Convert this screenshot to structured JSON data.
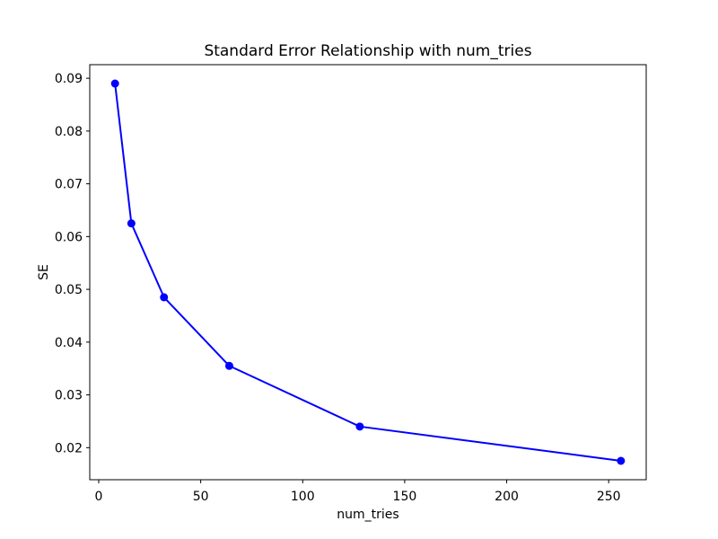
{
  "chart_data": {
    "type": "line",
    "title": "Standard Error Relationship with num_tries",
    "xlabel": "num_tries",
    "ylabel": "SE",
    "x": [
      8,
      16,
      32,
      64,
      128,
      256
    ],
    "y": [
      0.089,
      0.0625,
      0.0485,
      0.0355,
      0.024,
      0.0175
    ],
    "x_ticks": [
      0,
      50,
      100,
      150,
      200,
      250
    ],
    "y_ticks": [
      0.02,
      0.03,
      0.04,
      0.05,
      0.06,
      0.07,
      0.08,
      0.09
    ],
    "y_tick_decimals": 2,
    "xlim": [
      -4.4,
      268.4
    ],
    "ylim": [
      0.013925,
      0.092575
    ],
    "grid": false,
    "legend": null,
    "marker": "o",
    "line_color": "#0000ff",
    "axis_color": "#000000",
    "background_color": "#ffffff"
  }
}
